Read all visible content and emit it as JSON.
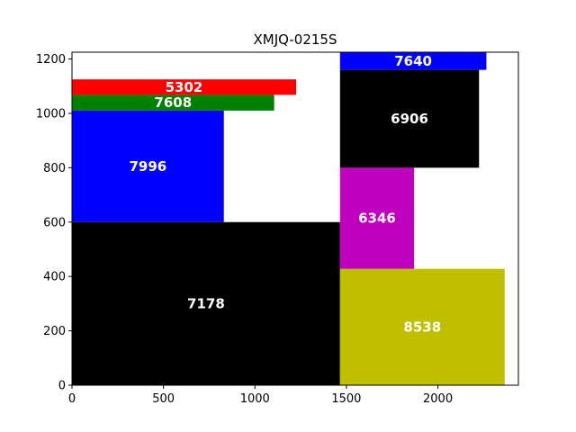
{
  "chart_data": {
    "type": "treemap",
    "title": "XMJQ-0215S",
    "xlim": [
      0,
      2440
    ],
    "ylim": [
      0,
      1225
    ],
    "x_ticks": [
      0,
      500,
      1000,
      1500,
      2000
    ],
    "y_ticks": [
      0,
      200,
      400,
      600,
      800,
      1000,
      1200
    ],
    "grid": false,
    "rects": [
      {
        "label": "7178",
        "value": 7178,
        "x0": 0,
        "x1": 1465,
        "y0": 0,
        "y1": 600,
        "color": "#000000",
        "text_color": "#ffffff"
      },
      {
        "label": "7996",
        "value": 7996,
        "x0": 0,
        "x1": 830,
        "y0": 600,
        "y1": 1010,
        "color": "#0000ff",
        "text_color": "#ffffff"
      },
      {
        "label": "7608",
        "value": 7608,
        "x0": 0,
        "x1": 1105,
        "y0": 1010,
        "y1": 1068,
        "color": "#008000",
        "text_color": "#ffffff"
      },
      {
        "label": "5302",
        "value": 5302,
        "x0": 0,
        "x1": 1225,
        "y0": 1068,
        "y1": 1125,
        "color": "#ff0000",
        "text_color": "#ffffff"
      },
      {
        "label": "8538",
        "value": 8538,
        "x0": 1465,
        "x1": 2365,
        "y0": 0,
        "y1": 428,
        "color": "#bfbf00",
        "text_color": "#ffffff"
      },
      {
        "label": "6346",
        "value": 6346,
        "x0": 1465,
        "x1": 1870,
        "y0": 428,
        "y1": 800,
        "color": "#bf00bf",
        "text_color": "#ffffff"
      },
      {
        "label": "6906",
        "value": 6906,
        "x0": 1465,
        "x1": 2225,
        "y0": 800,
        "y1": 1160,
        "color": "#000000",
        "text_color": "#ffffff"
      },
      {
        "label": "7640",
        "value": 7640,
        "x0": 1465,
        "x1": 2265,
        "y0": 1160,
        "y1": 1225,
        "color": "#0000ff",
        "text_color": "#ffffff"
      }
    ]
  }
}
